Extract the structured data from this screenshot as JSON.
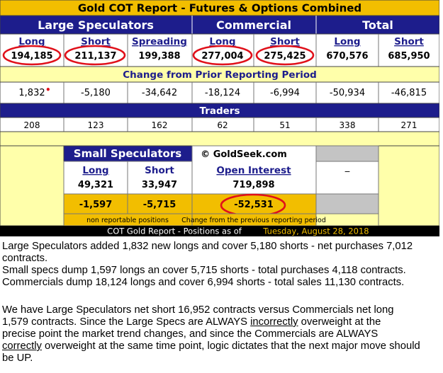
{
  "report": {
    "title": "Gold COT Report - Futures & Options Combined",
    "groups": {
      "large": "Large Speculators",
      "commercial": "Commercial",
      "total": "Total"
    },
    "large_headers": [
      "Long",
      "Short",
      "Spreading"
    ],
    "commercial_headers": [
      "Long",
      "Short"
    ],
    "total_headers": [
      "Long",
      "Short"
    ],
    "positions": [
      "194,185",
      "211,137",
      "199,388",
      "277,004",
      "275,425",
      "670,576",
      "685,950"
    ],
    "change_header": "Change from Prior Reporting Period",
    "changes": [
      "1,832",
      "-5,180",
      "-34,642",
      "-18,124",
      "-6,994",
      "-50,934",
      "-46,815"
    ],
    "traders_header": "Traders",
    "traders": [
      "208",
      "123",
      "162",
      "62",
      "51",
      "338",
      "271"
    ],
    "small": {
      "title": "Small Speculators",
      "long_label": "Long",
      "short_label": "Short",
      "long_value": "49,321",
      "short_value": "33,947",
      "long_change": "-1,597",
      "short_change": "-5,715",
      "footnote": "non reportable positions"
    },
    "open_interest": {
      "watermark": "© GoldSeek.com",
      "label": "Open Interest",
      "value": "719,898",
      "change": "-52,531",
      "footnote": "Change from the previous reporting period"
    },
    "right_mark": "_",
    "footer_label": "COT Gold Report - Positions as of",
    "footer_date": "Tuesday, August 28, 2018",
    "colors": {
      "navy": "#1d1d8c",
      "yellow": "#ffffaa",
      "gold": "#f2be00",
      "highlight_ring": "#e0101a"
    }
  },
  "commentary": {
    "p1_lines": [
      "Large Speculators added 1,832 new longs and cover 5,180 shorts - net purchases 7,012",
      "contracts.",
      "Small specs dump 1,597 longs an cover 5,715 shorts - total purchases 4,118 contracts.",
      "Commercials dump 18,124 longs and cover 6,994 shorts - total sales 11,130 contracts."
    ],
    "p2_line1": "We have Large Speculators net short 16,952 contracts versus Commercials net long",
    "p2_line2": "1,579 contracts. Since the Large Specs are ALWAYS ",
    "p2_incorrectly": "incorrectly",
    "p2_line2_end": " overweight at the",
    "p2_line3": "precise point the market trend changes, and since the Commercials are ALWAYS",
    "p2_correctly": "correctly",
    "p2_line4_end": " overweight at the same time point, logic dictates that the next major move should",
    "p2_line5": "be UP."
  }
}
